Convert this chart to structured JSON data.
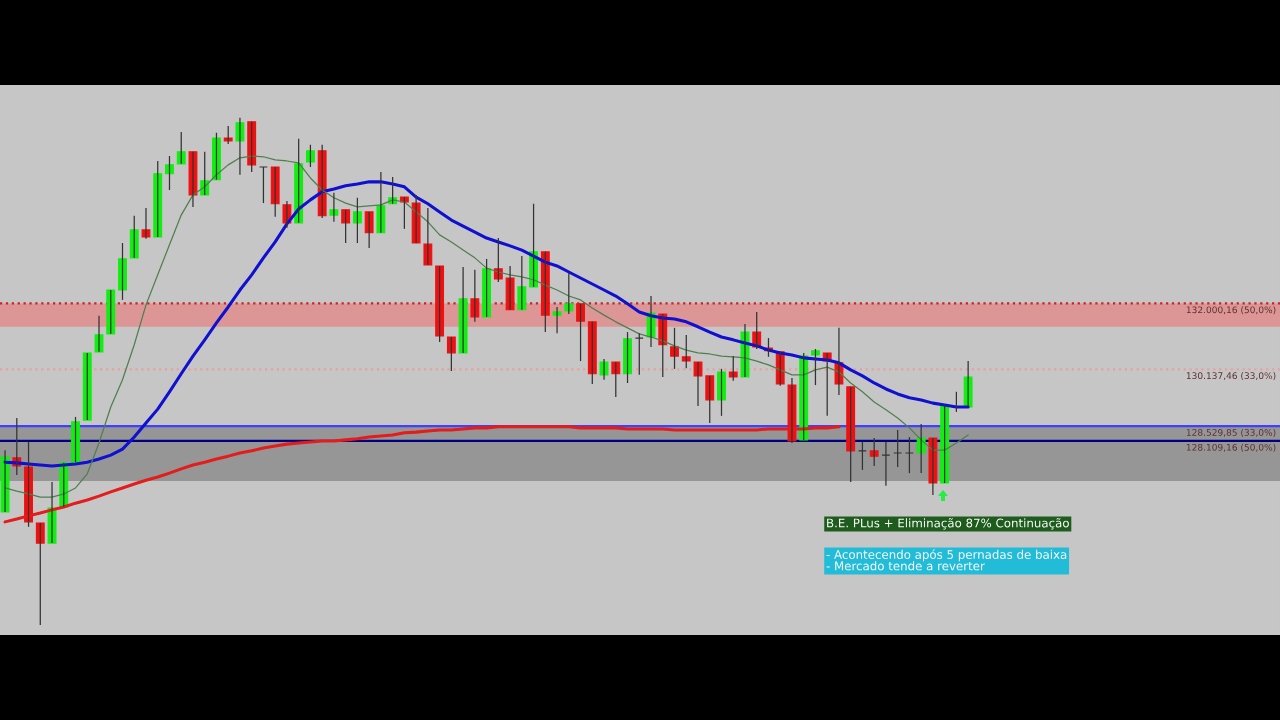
{
  "chart_data": {
    "type": "candlestick",
    "categories": [
      null,
      null,
      null,
      null,
      null,
      null,
      null,
      null,
      null,
      null,
      null,
      null,
      null,
      null,
      null,
      null,
      null,
      null,
      null,
      null,
      null,
      null,
      null,
      null,
      null,
      null,
      null,
      null,
      null,
      null,
      null,
      null,
      null,
      null,
      null,
      null,
      null,
      null,
      null,
      null,
      null,
      null,
      null,
      null,
      null,
      null,
      null,
      null,
      null,
      null,
      null,
      null,
      null,
      null,
      null,
      null,
      null,
      null,
      null,
      null,
      null,
      null,
      null,
      null,
      null,
      null,
      null,
      null,
      null,
      null,
      null,
      null,
      null,
      null,
      null,
      null,
      null,
      null,
      null,
      null,
      null,
      null,
      null
    ],
    "ohlc": [
      [
        126100,
        127850,
        126100,
        127660
      ],
      [
        127630,
        128760,
        127150,
        127400
      ],
      [
        127370,
        128080,
        125680,
        125820
      ],
      [
        125790,
        125790,
        122900,
        125220
      ],
      [
        125220,
        126950,
        125220,
        126210
      ],
      [
        126240,
        127490,
        126240,
        127490
      ],
      [
        127510,
        128790,
        127510,
        128650
      ],
      [
        128700,
        130600,
        128700,
        130600
      ],
      [
        130630,
        131650,
        130630,
        131110
      ],
      [
        131140,
        132380,
        131140,
        132380
      ],
      [
        132380,
        133710,
        132100,
        133260
      ],
      [
        133290,
        134480,
        133290,
        134080
      ],
      [
        134080,
        134700,
        133830,
        133880
      ],
      [
        133880,
        136030,
        133880,
        135670
      ],
      [
        135670,
        136170,
        135210,
        135920
      ],
      [
        135950,
        136850,
        135950,
        136290
      ],
      [
        136290,
        136290,
        134730,
        135070
      ],
      [
        135070,
        136290,
        135070,
        135470
      ],
      [
        135500,
        136830,
        135500,
        136680
      ],
      [
        136680,
        137020,
        136510,
        136600
      ],
      [
        136600,
        137250,
        135640,
        137110
      ],
      [
        137140,
        137140,
        135720,
        135920
      ],
      [
        135860,
        135860,
        134840,
        135860
      ],
      [
        135860,
        135860,
        134450,
        134820
      ],
      [
        134790,
        134900,
        134140,
        134280
      ],
      [
        134280,
        136660,
        134280,
        135950
      ],
      [
        136000,
        136490,
        135860,
        136320
      ],
      [
        136320,
        136490,
        134420,
        134480
      ],
      [
        134500,
        135130,
        134310,
        134650
      ],
      [
        134650,
        134650,
        133710,
        134280
      ],
      [
        134280,
        134990,
        133710,
        134590
      ],
      [
        134590,
        134590,
        133570,
        134000
      ],
      [
        134000,
        135720,
        134000,
        134760
      ],
      [
        134820,
        135580,
        134820,
        134990
      ],
      [
        135010,
        135010,
        134110,
        134870
      ],
      [
        134840,
        135070,
        133710,
        133710
      ],
      [
        133680,
        134700,
        133090,
        133090
      ],
      [
        133060,
        133060,
        130910,
        131080
      ],
      [
        131050,
        131050,
        130090,
        130600
      ],
      [
        130600,
        133030,
        130600,
        132130
      ],
      [
        132130,
        132950,
        131480,
        131620
      ],
      [
        131620,
        133260,
        131620,
        132980
      ],
      [
        132980,
        133850,
        132610,
        132690
      ],
      [
        132720,
        133060,
        131820,
        131820
      ],
      [
        131820,
        133340,
        131820,
        132470
      ],
      [
        132470,
        134820,
        132470,
        133460
      ],
      [
        133460,
        133460,
        131190,
        131670
      ],
      [
        131670,
        131900,
        131160,
        131760
      ],
      [
        131790,
        132860,
        131700,
        131990
      ],
      [
        131990,
        131990,
        130370,
        131500
      ],
      [
        131480,
        131480,
        129720,
        130010
      ],
      [
        129980,
        130430,
        129840,
        130340
      ],
      [
        130340,
        130340,
        129350,
        130010
      ],
      [
        130010,
        131190,
        129750,
        131000
      ],
      [
        131020,
        131160,
        129980,
        131020
      ],
      [
        131050,
        132210,
        130770,
        131730
      ],
      [
        131700,
        131700,
        129920,
        130830
      ],
      [
        130770,
        131310,
        130150,
        130510
      ],
      [
        130490,
        131110,
        130170,
        130370
      ],
      [
        130340,
        130340,
        129100,
        129950
      ],
      [
        129950,
        129950,
        128620,
        129270
      ],
      [
        129270,
        130150,
        128820,
        130060
      ],
      [
        130060,
        130510,
        129810,
        129920
      ],
      [
        129920,
        131420,
        129920,
        131190
      ],
      [
        131190,
        131760,
        130710,
        130770
      ],
      [
        130740,
        131020,
        130490,
        130660
      ],
      [
        130630,
        130630,
        129670,
        129720
      ],
      [
        129690,
        129890,
        128050,
        128110
      ],
      [
        128140,
        130600,
        128140,
        130510
      ],
      [
        130540,
        130710,
        129690,
        130660
      ],
      [
        130600,
        130600,
        128820,
        130370
      ],
      [
        130320,
        131310,
        129410,
        129720
      ],
      [
        129640,
        129640,
        126950,
        127830
      ],
      [
        127830,
        128080,
        127290,
        127830
      ],
      [
        127830,
        128190,
        127400,
        127680
      ],
      [
        127710,
        128080,
        126840,
        127710
      ],
      [
        127770,
        128420,
        127370,
        127770
      ],
      [
        127770,
        128220,
        127200,
        127770
      ],
      [
        127770,
        128590,
        127200,
        128190
      ],
      [
        128190,
        128190,
        126580,
        126920
      ],
      [
        126920,
        129130,
        126920,
        129130
      ],
      [
        129070,
        129500,
        128930,
        129070
      ],
      [
        129070,
        130370,
        129070,
        129920
      ]
    ],
    "colors": [
      "#11ee11",
      "#ee1111",
      "#ee1111",
      "#ee1111",
      "#11ee11",
      "#11ee11",
      "#11ee11",
      "#11ee11",
      "#11ee11",
      "#11ee11",
      "#11ee11",
      "#11ee11",
      "#ee1111",
      "#11ee11",
      "#11ee11",
      "#11ee11",
      "#ee1111",
      "#11ee11",
      "#11ee11",
      "#ee1111",
      "#11ee11",
      "#ee1111",
      "#333333",
      "#ee1111",
      "#ee1111",
      "#11ee11",
      "#11ee11",
      "#ee1111",
      "#11ee11",
      "#ee1111",
      "#11ee11",
      "#ee1111",
      "#11ee11",
      "#11ee11",
      "#ee1111",
      "#ee1111",
      "#ee1111",
      "#ee1111",
      "#ee1111",
      "#11ee11",
      "#ee1111",
      "#11ee11",
      "#ee1111",
      "#ee1111",
      "#11ee11",
      "#11ee11",
      "#ee1111",
      "#11ee11",
      "#11ee11",
      "#ee1111",
      "#ee1111",
      "#11ee11",
      "#ee1111",
      "#11ee11",
      "#333333",
      "#11ee11",
      "#ee1111",
      "#ee1111",
      "#ee1111",
      "#ee1111",
      "#ee1111",
      "#11ee11",
      "#ee1111",
      "#11ee11",
      "#ee1111",
      "#ee1111",
      "#ee1111",
      "#ee1111",
      "#11ee11",
      "#11ee11",
      "#ee1111",
      "#ee1111",
      "#ee1111",
      "#333333",
      "#ee1111",
      "#333333",
      "#333333",
      "#333333",
      "#11ee11",
      "#ee1111",
      "#11ee11",
      "#333333",
      "#11ee11"
    ],
    "series": [
      {
        "type": "line",
        "color": "#e41c1c",
        "values": [
          125820,
          125900,
          125990,
          126070,
          126160,
          126240,
          126350,
          126440,
          126550,
          126670,
          126780,
          126890,
          127000,
          127090,
          127200,
          127320,
          127430,
          127510,
          127600,
          127680,
          127770,
          127830,
          127910,
          127970,
          128020,
          128050,
          128080,
          128110,
          128110,
          128140,
          128170,
          128220,
          128250,
          128280,
          128340,
          128360,
          128390,
          128420,
          128420,
          128450,
          128480,
          128480,
          128510,
          128510,
          128510,
          128510,
          128510,
          128510,
          128510,
          128480,
          128480,
          128480,
          128480,
          128450,
          128450,
          128450,
          128450,
          128420,
          128420,
          128420,
          128420,
          128420,
          128420,
          128420,
          128420,
          128450,
          128450,
          128450,
          128450,
          128480,
          128480,
          128510,
          null,
          null,
          null,
          null,
          null,
          null,
          null,
          null,
          null,
          null,
          null
        ]
      },
      {
        "type": "line",
        "color": "#1010d0",
        "values": [
          127510,
          127490,
          127460,
          127430,
          127400,
          127430,
          127460,
          127510,
          127600,
          127710,
          127880,
          128220,
          128620,
          129010,
          129500,
          130010,
          130510,
          130970,
          131450,
          131900,
          132380,
          132810,
          133290,
          133740,
          134250,
          134670,
          134930,
          135160,
          135240,
          135330,
          135380,
          135440,
          135440,
          135380,
          135300,
          135010,
          134820,
          134590,
          134360,
          134190,
          134020,
          133850,
          133740,
          133630,
          133510,
          133340,
          133170,
          133060,
          132890,
          132720,
          132550,
          132380,
          132210,
          131990,
          131760,
          131650,
          131590,
          131560,
          131480,
          131340,
          131190,
          131050,
          130970,
          130880,
          130800,
          130680,
          130600,
          130540,
          130460,
          130430,
          130400,
          130320,
          130120,
          129950,
          129750,
          129580,
          129440,
          129330,
          129270,
          129180,
          129130,
          129070,
          129070
        ]
      },
      {
        "type": "line",
        "color": "#4f7f4f",
        "values": [
          126780,
          126690,
          126610,
          126520,
          126520,
          126610,
          126780,
          127180,
          128050,
          129070,
          129840,
          130830,
          131960,
          132810,
          133660,
          134500,
          135070,
          135300,
          135640,
          135920,
          136120,
          136170,
          136150,
          136060,
          136030,
          135980,
          135550,
          135210,
          134990,
          134840,
          134730,
          134760,
          134790,
          134930,
          134870,
          134590,
          134310,
          133940,
          133740,
          133510,
          133290,
          133000,
          132890,
          132810,
          132750,
          132670,
          132520,
          132380,
          132210,
          132100,
          131870,
          131670,
          131480,
          131310,
          131140,
          131050,
          130940,
          130800,
          130680,
          130600,
          130570,
          130510,
          130490,
          130460,
          130370,
          130260,
          130120,
          129980,
          129980,
          130120,
          130200,
          130060,
          129750,
          129500,
          129210,
          128990,
          128760,
          128480,
          128140,
          127850,
          127850,
          128050,
          128280
        ]
      }
    ],
    "ylim": [
      122620,
      138180
    ],
    "ref_lines": [
      {
        "axis": "y",
        "value": 132000.16,
        "label": "132.000,16 (50,0%)",
        "color": "#d02020",
        "line_style": "dotted"
      },
      {
        "axis": "y",
        "value": 130137.46,
        "label": "130.137,46 (33,0%)",
        "color": "#e8a0a0",
        "line_style": "dotted"
      },
      {
        "axis": "y",
        "value": 128529.85,
        "label": "128.529,85 (33,0%)",
        "color": "#4040ff",
        "line_style": "solid"
      },
      {
        "axis": "y",
        "value": 128109.16,
        "label": "128.109,16 (50,0%)",
        "color": "#000080",
        "line_style": "solid"
      }
    ],
    "bands": [
      {
        "axis": "y",
        "from": 131340,
        "to": 132000.16,
        "color": "#f07070"
      },
      {
        "axis": "y",
        "from": 126980,
        "to": 128529.85,
        "color": "#707070"
      }
    ],
    "annotations": [
      "B.E. PLus + Eliminação 87% Continuação",
      "- Acontecendo após 5 pernadas de baixa\n- Mercado tende a reverter"
    ],
    "tick_labels": false
  }
}
